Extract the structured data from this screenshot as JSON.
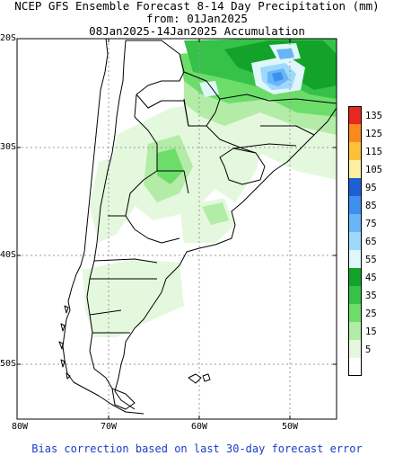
{
  "title": {
    "line1": "NCEP GFS Ensemble Forecast 8-14 Day Precipitation (mm)",
    "line2": "from: 01Jan2025",
    "line3": "08Jan2025-14Jan2025 Accumulation"
  },
  "axes": {
    "lat_labels": [
      "20S",
      "30S",
      "40S",
      "50S"
    ],
    "lon_labels": [
      "80W",
      "70W",
      "60W",
      "50W"
    ]
  },
  "legend": {
    "items": [
      {
        "label": "135",
        "color": "#e8281c"
      },
      {
        "label": "125",
        "color": "#fa8a20"
      },
      {
        "label": "115",
        "color": "#fdc039"
      },
      {
        "label": "105",
        "color": "#fdf0a0"
      },
      {
        "label": "95",
        "color": "#1f5fd6"
      },
      {
        "label": "85",
        "color": "#3d8ff0"
      },
      {
        "label": "75",
        "color": "#68b5f8"
      },
      {
        "label": "65",
        "color": "#9fd8fd"
      },
      {
        "label": "55",
        "color": "#dff6fb"
      },
      {
        "label": "45",
        "color": "#13a32a"
      },
      {
        "label": "35",
        "color": "#36c248"
      },
      {
        "label": "25",
        "color": "#6ddd6a"
      },
      {
        "label": "15",
        "color": "#b2eca6"
      },
      {
        "label": "5",
        "color": "#e4f8de"
      },
      {
        "label": "",
        "color": "#ffffff"
      }
    ]
  },
  "footnote": "Bias correction based on last 30-day forecast error"
}
